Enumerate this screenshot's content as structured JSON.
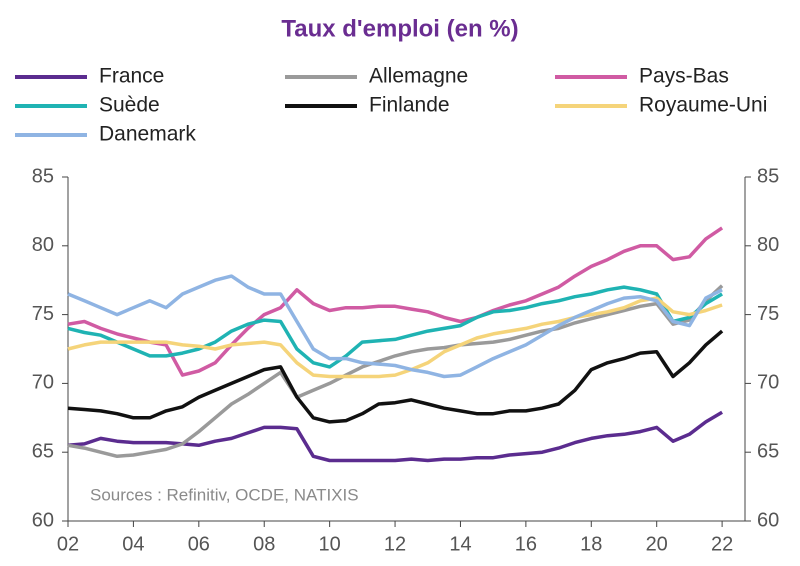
{
  "chart_data": {
    "type": "line",
    "title": "Taux d'emploi (en %)",
    "annotation": "Sources : Refinitiv, OCDE, NATIXIS",
    "x": [
      2,
      2.5,
      3,
      3.5,
      4,
      4.5,
      5,
      5.5,
      6,
      6.5,
      7,
      7.5,
      8,
      8.5,
      9,
      9.5,
      10,
      10.5,
      11,
      11.5,
      12,
      12.5,
      13,
      13.5,
      14,
      14.5,
      15,
      15.5,
      16,
      16.5,
      17,
      17.5,
      18,
      18.5,
      19,
      19.5,
      20,
      20.5,
      21,
      21.5,
      22
    ],
    "series": [
      {
        "name": "France",
        "color": "#5b2c8f",
        "values": [
          65.5,
          65.6,
          66.0,
          65.8,
          65.7,
          65.7,
          65.7,
          65.6,
          65.5,
          65.8,
          66.0,
          66.4,
          66.8,
          66.8,
          66.7,
          64.7,
          64.4,
          64.4,
          64.4,
          64.4,
          64.4,
          64.5,
          64.4,
          64.5,
          64.5,
          64.6,
          64.6,
          64.8,
          64.9,
          65.0,
          65.3,
          65.7,
          66.0,
          66.2,
          66.3,
          66.5,
          66.8,
          65.8,
          66.3,
          67.2,
          67.9
        ]
      },
      {
        "name": "Allemagne",
        "color": "#9a9a9a",
        "values": [
          65.5,
          65.3,
          65.0,
          64.7,
          64.8,
          65.0,
          65.2,
          65.6,
          66.5,
          67.5,
          68.5,
          69.2,
          70.0,
          70.8,
          69.0,
          69.5,
          70.0,
          70.6,
          71.2,
          71.6,
          72.0,
          72.3,
          72.5,
          72.6,
          72.8,
          72.9,
          73.0,
          73.2,
          73.5,
          73.8,
          74.0,
          74.4,
          74.7,
          75.0,
          75.3,
          75.6,
          75.8,
          74.3,
          74.6,
          76.0,
          77.1
        ]
      },
      {
        "name": "Pays-Bas",
        "color": "#d05ba3",
        "values": [
          74.3,
          74.5,
          74.0,
          73.6,
          73.3,
          73.0,
          72.8,
          70.6,
          70.9,
          71.5,
          72.8,
          74.0,
          75.0,
          75.5,
          76.8,
          75.8,
          75.3,
          75.5,
          75.5,
          75.6,
          75.6,
          75.4,
          75.2,
          74.8,
          74.5,
          74.8,
          75.3,
          75.7,
          76.0,
          76.5,
          77.0,
          77.8,
          78.5,
          79.0,
          79.6,
          80.0,
          80.0,
          79.0,
          79.2,
          80.5,
          81.3
        ]
      },
      {
        "name": "Suède",
        "color": "#1fb3b3",
        "values": [
          74.0,
          73.7,
          73.5,
          73.0,
          72.5,
          72.0,
          72.0,
          72.2,
          72.5,
          73.0,
          73.8,
          74.3,
          74.6,
          74.5,
          72.5,
          71.5,
          71.2,
          72.0,
          73.0,
          73.1,
          73.2,
          73.5,
          73.8,
          74.0,
          74.2,
          74.8,
          75.2,
          75.3,
          75.5,
          75.8,
          76.0,
          76.3,
          76.5,
          76.8,
          77.0,
          76.8,
          76.5,
          74.5,
          74.8,
          75.8,
          76.5
        ]
      },
      {
        "name": "Finlande",
        "color": "#111111",
        "values": [
          68.2,
          68.1,
          68.0,
          67.8,
          67.5,
          67.5,
          68.0,
          68.3,
          69.0,
          69.5,
          70.0,
          70.5,
          71.0,
          71.2,
          69.0,
          67.5,
          67.2,
          67.3,
          67.8,
          68.5,
          68.6,
          68.8,
          68.5,
          68.2,
          68.0,
          67.8,
          67.8,
          68.0,
          68.0,
          68.2,
          68.5,
          69.5,
          71.0,
          71.5,
          71.8,
          72.2,
          72.3,
          70.5,
          71.5,
          72.8,
          73.8
        ]
      },
      {
        "name": "Royaume-Uni",
        "color": "#f5d47a",
        "values": [
          72.5,
          72.8,
          73.0,
          73.0,
          73.0,
          73.0,
          73.0,
          72.8,
          72.7,
          72.5,
          72.8,
          72.9,
          73.0,
          72.8,
          71.5,
          70.6,
          70.5,
          70.5,
          70.5,
          70.5,
          70.6,
          71.0,
          71.5,
          72.3,
          72.8,
          73.3,
          73.6,
          73.8,
          74.0,
          74.3,
          74.5,
          74.8,
          75.0,
          75.2,
          75.5,
          76.0,
          76.2,
          75.2,
          75.0,
          75.3,
          75.7
        ]
      },
      {
        "name": "Danemark",
        "color": "#8fb4e3",
        "values": [
          76.5,
          76.0,
          75.5,
          75.0,
          75.5,
          76.0,
          75.5,
          76.5,
          77.0,
          77.5,
          77.8,
          77.0,
          76.5,
          76.5,
          74.5,
          72.5,
          71.8,
          71.8,
          71.5,
          71.4,
          71.3,
          71.0,
          70.8,
          70.5,
          70.6,
          71.2,
          71.8,
          72.3,
          72.8,
          73.5,
          74.2,
          74.8,
          75.3,
          75.8,
          76.2,
          76.3,
          76.0,
          74.5,
          74.2,
          76.2,
          76.8
        ]
      }
    ],
    "xlim": [
      2,
      22.7
    ],
    "xticks": [
      {
        "value": 2,
        "label": "02"
      },
      {
        "value": 4,
        "label": "04"
      },
      {
        "value": 6,
        "label": "06"
      },
      {
        "value": 8,
        "label": "08"
      },
      10,
      12,
      14,
      16,
      18,
      20,
      22
    ],
    "ylim": [
      60,
      85
    ],
    "yticks": [
      60,
      65,
      70,
      75,
      80,
      85
    ],
    "grid": false
  }
}
